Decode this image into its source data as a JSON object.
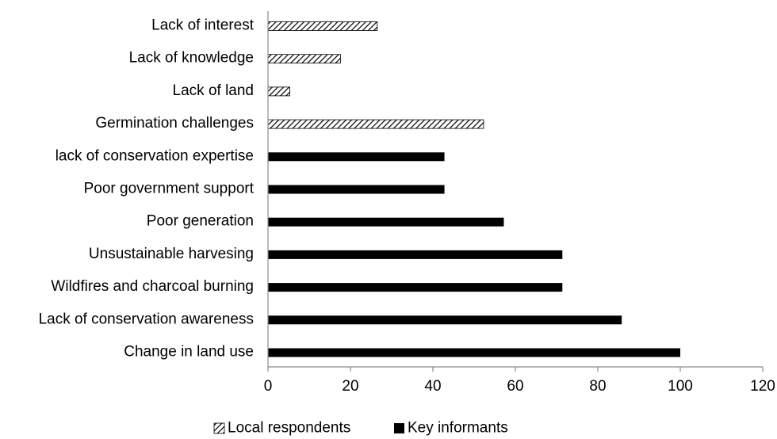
{
  "chart_data": {
    "type": "bar",
    "orientation": "horizontal",
    "title": "",
    "xlabel": "",
    "ylabel": "",
    "xlim": [
      0,
      120
    ],
    "x_ticks": [
      0,
      20,
      40,
      60,
      80,
      100,
      120
    ],
    "grid": false,
    "legend_position": "bottom",
    "categories": [
      "Lack of interest",
      "Lack of knowledge ",
      "Lack of land",
      "Germination challenges",
      "lack of conservation expertise",
      "Poor government support",
      "Poor generation ",
      "Unsustainable harvesing ",
      "Wildfires and charcoal burning",
      "Lack of conservation awareness",
      "Change in land use "
    ],
    "series": [
      {
        "name": "Local respondents",
        "pattern": "diagonal-hatch",
        "color": "#000000",
        "values": [
          26.5,
          17.6,
          5.3,
          52.3,
          null,
          null,
          null,
          null,
          null,
          null,
          null
        ]
      },
      {
        "name": "Key informants",
        "pattern": "solid",
        "color": "#000000",
        "values": [
          null,
          null,
          null,
          null,
          42.8,
          42.8,
          57.2,
          71.4,
          71.4,
          85.8,
          100
        ]
      }
    ]
  }
}
